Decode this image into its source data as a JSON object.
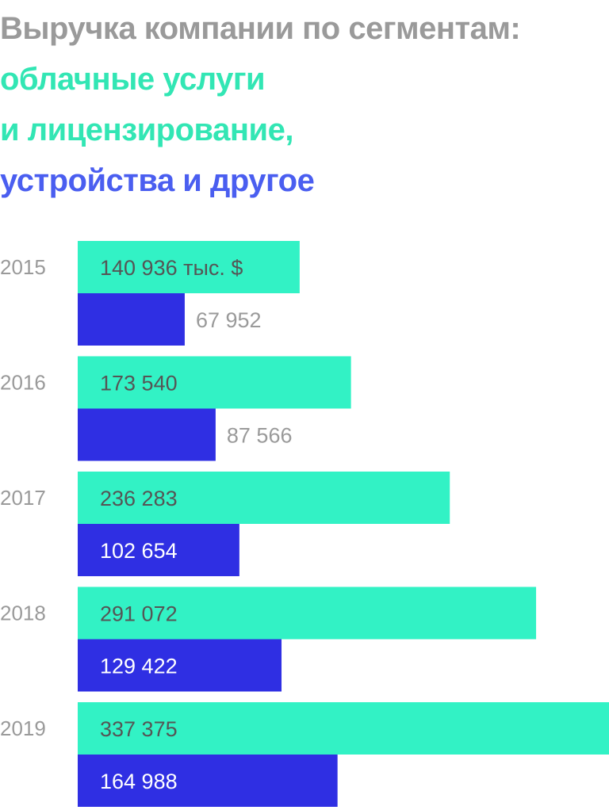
{
  "title": {
    "line1": "Выручка компании по сегментам:",
    "line2": "облачные услуги",
    "line3": "и лицензирование,",
    "line4": "устройства и другое"
  },
  "chart_data": {
    "type": "bar",
    "orientation": "horizontal",
    "categories": [
      "2015",
      "2016",
      "2017",
      "2018",
      "2019"
    ],
    "series": [
      {
        "name": "облачные услуги и лицензирование",
        "color": "#32f2c5",
        "values": [
          140936,
          173540,
          236283,
          291072,
          337375
        ],
        "labels": [
          "140 936 тыс. $",
          "173 540",
          "236 283",
          "291 072",
          "337 375"
        ]
      },
      {
        "name": "устройства и другое",
        "color": "#2f2fe3",
        "values": [
          67952,
          87566,
          102654,
          129422,
          164988
        ],
        "labels": [
          "67 952",
          "87 566",
          "102 654",
          "129 422",
          "164 988"
        ]
      }
    ],
    "unit": "тыс. $",
    "xlim": [
      0,
      337375
    ],
    "grid": false,
    "legend": "none"
  },
  "colors": {
    "title_gray": "#9a9a9a",
    "title_green": "#32e6b4",
    "title_blue": "#4a5ef0",
    "label_gray": "#9a9a9a",
    "label_dark": "#555555",
    "label_white": "#ffffff"
  }
}
